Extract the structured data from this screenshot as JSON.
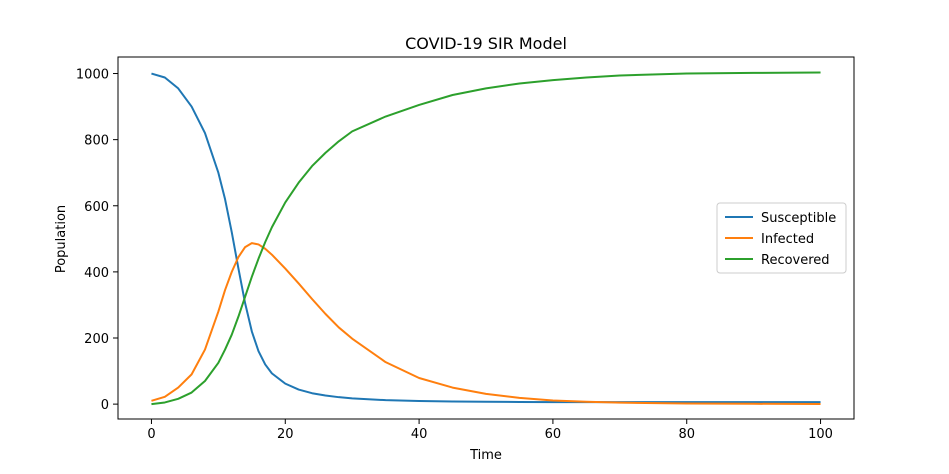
{
  "chart_data": {
    "type": "line",
    "title": "COVID-19 SIR Model",
    "xlabel": "Time",
    "ylabel": "Population",
    "xlim": [
      -5,
      105
    ],
    "ylim": [
      -45,
      1050
    ],
    "xticks": [
      0,
      20,
      40,
      60,
      80,
      100
    ],
    "yticks": [
      0,
      200,
      400,
      600,
      800,
      1000
    ],
    "grid": false,
    "legend_position": "center-right",
    "x": [
      0,
      2,
      4,
      6,
      8,
      10,
      11,
      12,
      13,
      14,
      15,
      16,
      17,
      18,
      20,
      22,
      24,
      26,
      28,
      30,
      35,
      40,
      45,
      50,
      55,
      60,
      65,
      70,
      80,
      90,
      100
    ],
    "series": [
      {
        "name": "Susceptible",
        "color": "#1f77b4",
        "values": [
          1000,
          988,
          955,
          900,
          820,
          700,
          620,
          520,
          410,
          305,
          220,
          160,
          120,
          93,
          62,
          44,
          33,
          26,
          21,
          17.5,
          12,
          9.5,
          8,
          7,
          6.5,
          6,
          6,
          6,
          6,
          6,
          6
        ]
      },
      {
        "name": "Infected",
        "color": "#ff7f0e",
        "values": [
          10,
          22,
          50,
          90,
          165,
          280,
          345,
          400,
          445,
          475,
          487,
          483,
          470,
          452,
          410,
          365,
          318,
          273,
          232,
          198,
          127,
          79,
          50,
          31,
          19,
          11,
          7,
          4.5,
          2,
          1,
          0.5
        ]
      },
      {
        "name": "Recovered",
        "color": "#2ca02c",
        "values": [
          0,
          5,
          16,
          35,
          70,
          125,
          165,
          210,
          265,
          325,
          385,
          440,
          490,
          535,
          610,
          670,
          720,
          760,
          795,
          825,
          870,
          905,
          935,
          955,
          970,
          980,
          988,
          994,
          1000,
          1002,
          1003
        ]
      }
    ]
  }
}
